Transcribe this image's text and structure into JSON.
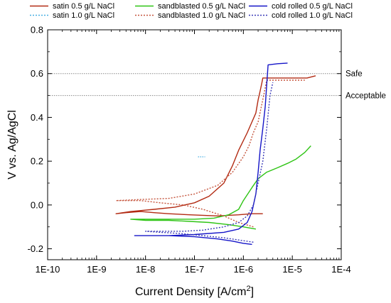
{
  "chart_data": {
    "type": "line",
    "title": "",
    "xlabel": "Current Density [A/cm²]",
    "ylabel": "V vs. Ag/AgCl",
    "xscale": "log",
    "xlim": [
      1e-10,
      0.0001
    ],
    "ylim": [
      -0.25,
      0.8
    ],
    "x_tick_labels": [
      "1E-10",
      "1E-9",
      "1E-8",
      "1E-7",
      "1E-6",
      "1E-5",
      "1E-4"
    ],
    "y_tick_labels": [
      "-0.2",
      "0.0",
      "0.2",
      "0.4",
      "0.6",
      "0.8"
    ],
    "y_ticks": [
      -0.2,
      0.0,
      0.2,
      0.4,
      0.6,
      0.8
    ],
    "legend_position": "top",
    "grid": false,
    "reference_lines": [
      {
        "y": 0.6,
        "label": "Safe"
      },
      {
        "y": 0.5,
        "label": "Acceptable"
      }
    ],
    "series": [
      {
        "name": "satin 0.5 g/L NaCl",
        "color": "#b22a12",
        "dash": "solid",
        "x": [
          2.5e-06,
          1.5e-06,
          8e-07,
          3e-07,
          8e-08,
          3e-08,
          1.5e-08,
          8e-09,
          4e-09,
          2.5e-09,
          5e-09,
          1.5e-08,
          4e-08,
          1e-07,
          2e-07,
          4e-07,
          6e-07,
          8e-07,
          1.2e-06,
          1.5e-06,
          1.8e-06,
          2e-06,
          2.2e-06,
          2.4e-06,
          2.5e-06,
          5e-06,
          1e-05,
          2e-05,
          3e-05
        ],
        "y": [
          -0.04,
          -0.04,
          -0.045,
          -0.05,
          -0.045,
          -0.04,
          -0.035,
          -0.03,
          -0.035,
          -0.04,
          -0.03,
          -0.02,
          -0.01,
          0.01,
          0.04,
          0.1,
          0.18,
          0.25,
          0.33,
          0.38,
          0.42,
          0.48,
          0.52,
          0.56,
          0.58,
          0.58,
          0.58,
          0.58,
          0.59
        ]
      },
      {
        "name": "satin 1.0 g/L NaCl",
        "color": "#4ab0e2",
        "dash": "dotted",
        "x": [
          1.4e-07
        ],
        "y": [
          0.22
        ]
      },
      {
        "name": "sandblasted 0.5 g/L NaCl",
        "color": "#2ec414",
        "dash": "solid",
        "x": [
          1.8e-06,
          1e-06,
          5e-07,
          2e-07,
          8e-08,
          3e-08,
          1e-08,
          5e-09,
          1e-08,
          3e-08,
          1e-07,
          2.5e-07,
          5e-07,
          8e-07,
          1e-06,
          1.5e-06,
          2e-06,
          3e-06,
          5e-06,
          8e-06,
          1.2e-05,
          1.8e-05,
          2.4e-05
        ],
        "y": [
          -0.11,
          -0.1,
          -0.09,
          -0.08,
          -0.075,
          -0.07,
          -0.07,
          -0.065,
          -0.065,
          -0.065,
          -0.065,
          -0.06,
          -0.045,
          -0.02,
          0.02,
          0.08,
          0.12,
          0.15,
          0.17,
          0.19,
          0.21,
          0.24,
          0.27
        ]
      },
      {
        "name": "sandblasted 1.0 g/L NaCl",
        "color": "#c5543c",
        "dash": "dotted",
        "x": [
          1.6e-06,
          8e-07,
          4e-07,
          1.5e-07,
          6e-08,
          2e-08,
          8e-09,
          2.5e-09,
          8e-09,
          3e-08,
          1e-07,
          3e-07,
          6e-07,
          1e-06,
          1.3e-06,
          1.6e-06,
          2e-06,
          2.6e-06,
          3e-06,
          5e-06,
          1e-05,
          1.8e-05
        ],
        "y": [
          -0.1,
          -0.08,
          -0.05,
          -0.02,
          0.0,
          0.01,
          0.02,
          0.02,
          0.025,
          0.03,
          0.05,
          0.09,
          0.15,
          0.22,
          0.27,
          0.33,
          0.38,
          0.5,
          0.57,
          0.57,
          0.57,
          0.57
        ]
      },
      {
        "name": "cold rolled 0.5 g/L NaCl",
        "color": "#1414c8",
        "dash": "solid",
        "x": [
          1.5e-06,
          1e-06,
          6e-07,
          3e-07,
          1e-07,
          3e-08,
          1e-08,
          6e-09,
          1e-08,
          3e-08,
          1e-07,
          4e-07,
          8e-07,
          1.2e-06,
          1.5e-06,
          1.8e-06,
          2e-06,
          2.2e-06,
          2.5e-06,
          2.8e-06,
          3e-06,
          3.2e-06,
          5e-06,
          8e-06
        ],
        "y": [
          -0.18,
          -0.175,
          -0.165,
          -0.155,
          -0.145,
          -0.14,
          -0.14,
          -0.14,
          -0.14,
          -0.14,
          -0.135,
          -0.125,
          -0.11,
          -0.08,
          -0.03,
          0.05,
          0.15,
          0.25,
          0.35,
          0.45,
          0.55,
          0.64,
          0.645,
          0.648
        ]
      },
      {
        "name": "cold rolled 1.0 g/L NaCl",
        "color": "#3a3ab8",
        "dash": "dotted",
        "x": [
          1.6e-06,
          8e-07,
          4e-07,
          1.5e-07,
          5e-08,
          2e-08,
          1e-08,
          2e-08,
          6e-08,
          1.5e-07,
          4e-07,
          8e-07,
          1.2e-06,
          1.6e-06,
          2e-06,
          2.5e-06,
          3e-06,
          3.5e-06,
          4e-06
        ],
        "y": [
          -0.17,
          -0.16,
          -0.15,
          -0.14,
          -0.13,
          -0.125,
          -0.12,
          -0.12,
          -0.12,
          -0.115,
          -0.1,
          -0.08,
          -0.05,
          0.0,
          0.1,
          0.2,
          0.35,
          0.5,
          0.56
        ]
      }
    ]
  }
}
